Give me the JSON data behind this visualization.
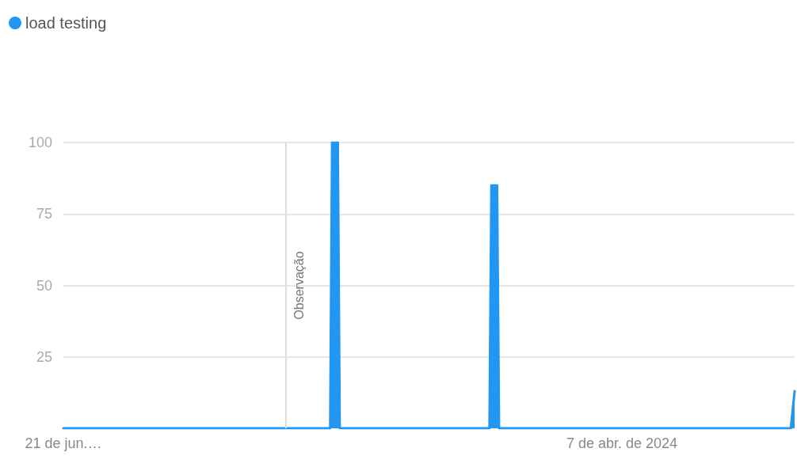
{
  "chart_data": {
    "type": "area",
    "series": [
      {
        "name": "load testing",
        "color": "#2196f3",
        "x": [
          "2023-06-21",
          "2023-11-07",
          "2023-11-08",
          "2023-11-11",
          "2023-11-12",
          "2024-01-29",
          "2024-01-30",
          "2024-02-02",
          "2024-02-03",
          "2024-07-04",
          "2024-07-06"
        ],
        "values": [
          0,
          0,
          100,
          100,
          0,
          0,
          85,
          85,
          0,
          0,
          13
        ]
      }
    ],
    "xlim": [
      "2023-06-21",
      "2024-07-06"
    ],
    "xticks": [
      {
        "value": "2023-06-21",
        "label": "21 de jun.…"
      },
      {
        "value": "2024-04-07",
        "label": "7 de abr. de 2024"
      }
    ],
    "ylim": [
      0,
      100
    ],
    "yticks": [
      25,
      50,
      75,
      100
    ],
    "ref_lines": [
      {
        "axis": "x",
        "value": "2023-10-15",
        "label": "Observação",
        "color": "#dddddd"
      }
    ],
    "grid": "y",
    "legend": "top left",
    "marker": "none",
    "line_style": "solid"
  }
}
